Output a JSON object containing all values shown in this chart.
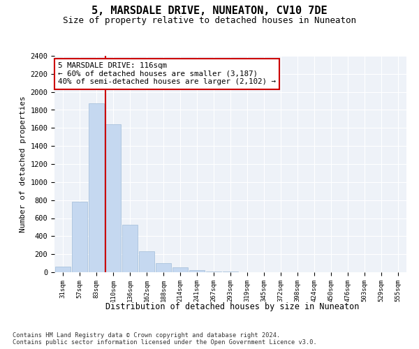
{
  "title": "5, MARSDALE DRIVE, NUNEATON, CV10 7DE",
  "subtitle": "Size of property relative to detached houses in Nuneaton",
  "xlabel": "Distribution of detached houses by size in Nuneaton",
  "ylabel": "Number of detached properties",
  "categories": [
    "31sqm",
    "57sqm",
    "83sqm",
    "110sqm",
    "136sqm",
    "162sqm",
    "188sqm",
    "214sqm",
    "241sqm",
    "267sqm",
    "293sqm",
    "319sqm",
    "345sqm",
    "372sqm",
    "398sqm",
    "424sqm",
    "450sqm",
    "476sqm",
    "503sqm",
    "529sqm",
    "555sqm"
  ],
  "bar_heights": [
    60,
    780,
    1870,
    1640,
    530,
    230,
    100,
    55,
    25,
    10,
    5,
    0,
    0,
    0,
    0,
    0,
    0,
    0,
    0,
    0,
    0
  ],
  "bar_color": "#c5d8f0",
  "bar_edge_color": "#a0bcd8",
  "vline_color": "#cc0000",
  "annotation_title": "5 MARSDALE DRIVE: 116sqm",
  "annotation_line1": "← 60% of detached houses are smaller (3,187)",
  "annotation_line2": "40% of semi-detached houses are larger (2,102) →",
  "annotation_box_color": "#ffffff",
  "annotation_box_edge": "#cc0000",
  "ylim": [
    0,
    2400
  ],
  "yticks": [
    0,
    200,
    400,
    600,
    800,
    1000,
    1200,
    1400,
    1600,
    1800,
    2000,
    2200,
    2400
  ],
  "background_color": "#eef2f8",
  "footer_line1": "Contains HM Land Registry data © Crown copyright and database right 2024.",
  "footer_line2": "Contains public sector information licensed under the Open Government Licence v3.0."
}
